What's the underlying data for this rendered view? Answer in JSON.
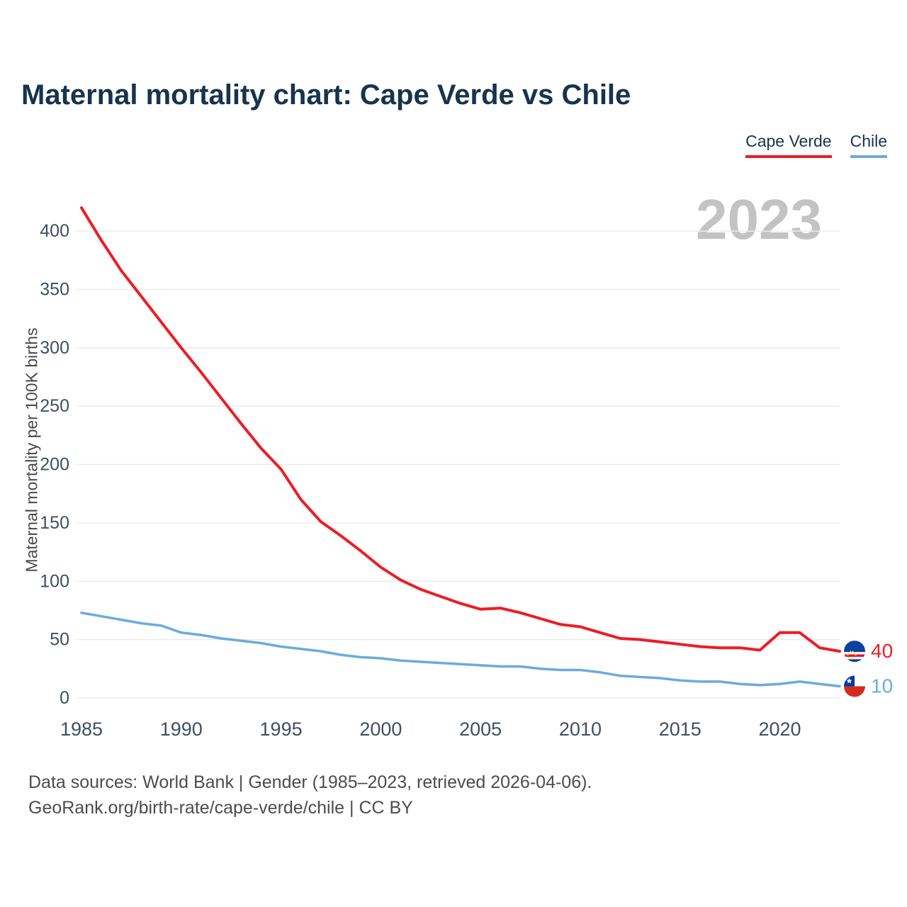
{
  "page": {
    "title": "Maternal mortality chart: Cape Verde vs Chile",
    "watermark": "2023",
    "footer_line1": "Data sources: World Bank | Gender (1985–2023, retrieved 2026-04-06).",
    "footer_line2": "GeoRank.org/birth-rate/cape-verde/chile | CC BY"
  },
  "legend": [
    {
      "label": "Cape Verde",
      "color": "#ee1c25"
    },
    {
      "label": "Chile",
      "color": "#6cabdd"
    }
  ],
  "chart_data": {
    "type": "line",
    "title": "Maternal mortality chart: Cape Verde vs Chile",
    "xlabel": "",
    "ylabel": "Maternal mortality per 100K births",
    "ylim": [
      0,
      425
    ],
    "yticks": [
      0,
      50,
      100,
      150,
      200,
      250,
      300,
      350,
      400
    ],
    "xticks": [
      1985,
      1990,
      1995,
      2000,
      2005,
      2010,
      2015,
      2020
    ],
    "grid": "horizontal",
    "legend_position": "top-right",
    "x": [
      1985,
      1986,
      1987,
      1988,
      1989,
      1990,
      1991,
      1992,
      1993,
      1994,
      1995,
      1996,
      1997,
      1998,
      1999,
      2000,
      2001,
      2002,
      2003,
      2004,
      2005,
      2006,
      2007,
      2008,
      2009,
      2010,
      2011,
      2012,
      2013,
      2014,
      2015,
      2016,
      2017,
      2018,
      2019,
      2020,
      2021,
      2022,
      2023
    ],
    "series": [
      {
        "id": "cape-verde",
        "name": "Cape Verde",
        "color": "#ee1c25",
        "flag": "cape-verde-flag-icon",
        "end_label": "40",
        "values": [
          420,
          392,
          366,
          344,
          322,
          300,
          279,
          257,
          235,
          214,
          196,
          170,
          151,
          139,
          126,
          112,
          101,
          93,
          87,
          81,
          76,
          77,
          73,
          68,
          63,
          61,
          56,
          51,
          50,
          48,
          46,
          44,
          43,
          43,
          41,
          56,
          56,
          43,
          40
        ]
      },
      {
        "id": "chile",
        "name": "Chile",
        "color": "#6cabdd",
        "flag": "chile-flag-icon",
        "end_label": "10",
        "values": [
          73,
          70,
          67,
          64,
          62,
          56,
          54,
          51,
          49,
          47,
          44,
          42,
          40,
          37,
          35,
          34,
          32,
          31,
          30,
          29,
          28,
          27,
          27,
          25,
          24,
          24,
          22,
          19,
          18,
          17,
          15,
          14,
          14,
          12,
          11,
          12,
          14,
          12,
          10
        ]
      }
    ]
  }
}
